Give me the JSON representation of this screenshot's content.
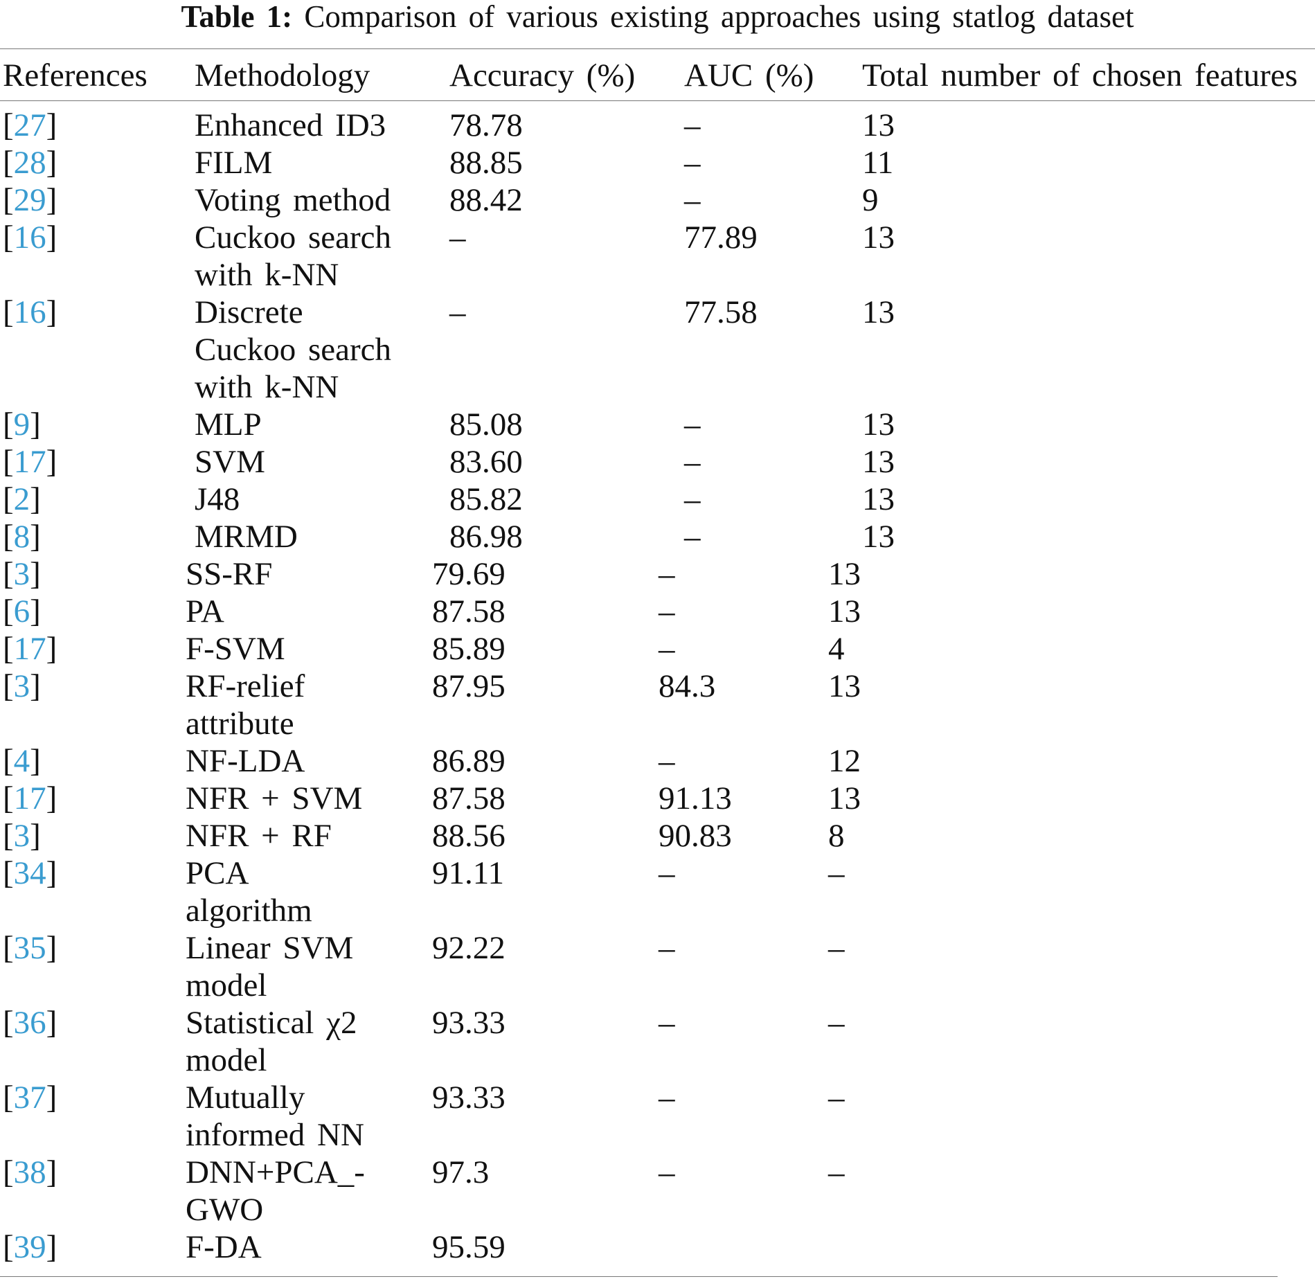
{
  "caption": {
    "label": "Table 1:",
    "text": "Comparison of various existing approaches using statlog dataset"
  },
  "table": {
    "headers": [
      "References",
      "Methodology",
      "Accuracy (%)",
      "AUC (%)",
      "Total number of chosen features"
    ],
    "rows": [
      {
        "ref": "27",
        "method": [
          "Enhanced ID3"
        ],
        "accuracy": "78.78",
        "auc": "–",
        "features": "13"
      },
      {
        "ref": "28",
        "method": [
          "FILM"
        ],
        "accuracy": "88.85",
        "auc": "–",
        "features": "11"
      },
      {
        "ref": "29",
        "method": [
          "Voting method"
        ],
        "accuracy": "88.42",
        "auc": "–",
        "features": "9"
      },
      {
        "ref": "16",
        "method": [
          "Cuckoo search",
          "with k-NN"
        ],
        "accuracy": "–",
        "auc": "77.89",
        "features": "13"
      },
      {
        "ref": "16",
        "method": [
          "Discrete",
          "Cuckoo search",
          "with k-NN"
        ],
        "accuracy": "–",
        "auc": "77.58",
        "features": "13"
      },
      {
        "ref": "9",
        "method": [
          "MLP"
        ],
        "accuracy": "85.08",
        "auc": "–",
        "features": "13"
      },
      {
        "ref": "17",
        "method": [
          "SVM"
        ],
        "accuracy": "83.60",
        "auc": "–",
        "features": "13"
      },
      {
        "ref": "2",
        "method": [
          "J48"
        ],
        "accuracy": "85.82",
        "auc": "–",
        "features": "13"
      },
      {
        "ref": "8",
        "method": [
          "MRMD"
        ],
        "accuracy": "86.98",
        "auc": "–",
        "features": "13"
      },
      {
        "ref": "3",
        "method": [
          "SS-RF"
        ],
        "accuracy": "79.69",
        "auc": "–",
        "features": "13"
      },
      {
        "ref": "6",
        "method": [
          "PA"
        ],
        "accuracy": "87.58",
        "auc": "–",
        "features": "13"
      },
      {
        "ref": "17",
        "method": [
          "F-SVM"
        ],
        "accuracy": "85.89",
        "auc": "–",
        "features": "4"
      },
      {
        "ref": "3",
        "method": [
          "RF-relief",
          "attribute"
        ],
        "accuracy": "87.95",
        "auc": "84.3",
        "features": "13"
      },
      {
        "ref": "4",
        "method": [
          "NF-LDA"
        ],
        "accuracy": "86.89",
        "auc": "–",
        "features": "12"
      },
      {
        "ref": "17",
        "method": [
          "NFR + SVM"
        ],
        "accuracy": "87.58",
        "auc": "91.13",
        "features": "13"
      },
      {
        "ref": "3",
        "method": [
          "NFR + RF"
        ],
        "accuracy": "88.56",
        "auc": "90.83",
        "features": "8"
      },
      {
        "ref": "34",
        "method": [
          "PCA",
          "algorithm"
        ],
        "accuracy": "91.11",
        "auc": "–",
        "features": "–"
      },
      {
        "ref": "35",
        "method": [
          "Linear SVM",
          "model"
        ],
        "accuracy": "92.22",
        "auc": "–",
        "features": "–"
      },
      {
        "ref": "36",
        "method": [
          "Statistical χ2",
          "model"
        ],
        "accuracy": "93.33",
        "auc": "–",
        "features": "–"
      },
      {
        "ref": "37",
        "method": [
          "Mutually",
          "informed NN"
        ],
        "accuracy": "93.33",
        "auc": "–",
        "features": "–"
      },
      {
        "ref": "38",
        "method": [
          "DNN+PCA_-",
          "GWO"
        ],
        "accuracy": "97.3",
        "auc": "–",
        "features": "–"
      },
      {
        "ref": "39",
        "method": [
          "F-DA"
        ],
        "accuracy": "95.59",
        "auc": "",
        "features": ""
      }
    ]
  },
  "colors": {
    "link": "#3a9cd0",
    "text": "#111111",
    "rule": "#777777"
  }
}
